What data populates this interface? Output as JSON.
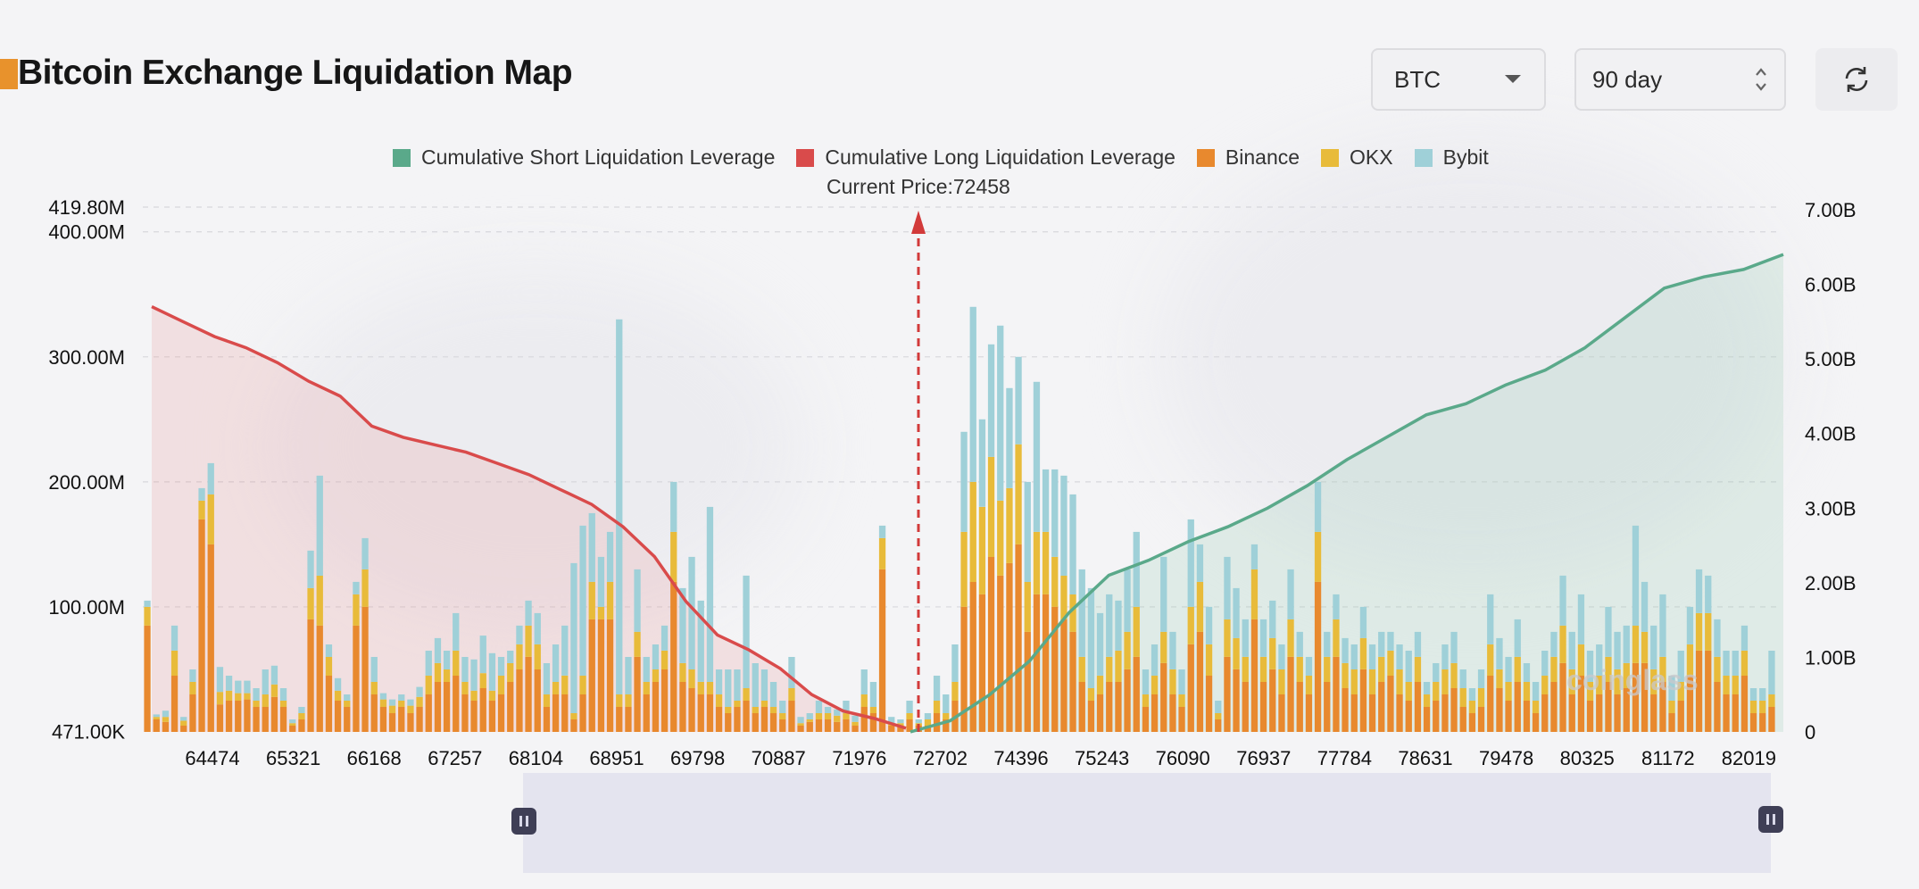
{
  "header": {
    "title": "Bitcoin Exchange Liquidation Map",
    "coin_select": "BTC",
    "range_select": "90 day",
    "icons": {
      "coin_caret": "chevron-down-icon",
      "range_caret": "up-down-icon",
      "refresh": "refresh-icon"
    }
  },
  "legend": {
    "items": [
      {
        "label": "Cumulative Short Liquidation Leverage",
        "color": "#5aa98a"
      },
      {
        "label": "Cumulative Long Liquidation Leverage",
        "color": "#d94b4b"
      },
      {
        "label": "Binance",
        "color": "#e8892e"
      },
      {
        "label": "OKX",
        "color": "#e8bb3a"
      },
      {
        "label": "Bybit",
        "color": "#9fd0d8"
      }
    ]
  },
  "current_price_label": "Current Price:72458",
  "watermark": "coinglass",
  "chart_data": {
    "type": "bar",
    "current_price": 72458,
    "x_tick_labels": [
      "64474",
      "65321",
      "66168",
      "67257",
      "68104",
      "68951",
      "69798",
      "70887",
      "71976",
      "72702",
      "74396",
      "75243",
      "76090",
      "76937",
      "77784",
      "78631",
      "79478",
      "80325",
      "81172",
      "82019"
    ],
    "y_left": {
      "tick_labels": [
        "471.00K",
        "100.00M",
        "200.00M",
        "300.00M",
        "400.00M",
        "419.80M"
      ],
      "ticks": [
        0.471,
        100,
        200,
        300,
        400,
        419.8
      ],
      "range": [
        0.471,
        419.8
      ],
      "unit": "M"
    },
    "y_right": {
      "tick_labels": [
        "0",
        "1.00B",
        "2.00B",
        "3.00B",
        "4.00B",
        "5.00B",
        "6.00B",
        "7.00B"
      ],
      "ticks": [
        0,
        1,
        2,
        3,
        4,
        5,
        6,
        7
      ],
      "range": [
        0,
        7
      ],
      "unit": "B"
    },
    "bars_binance_m": [
      85,
      10,
      8,
      45,
      5,
      30,
      170,
      150,
      22,
      25,
      25,
      26,
      20,
      20,
      28,
      20,
      5,
      10,
      90,
      85,
      45,
      25,
      20,
      85,
      100,
      30,
      20,
      15,
      20,
      15,
      20,
      30,
      40,
      40,
      45,
      30,
      25,
      35,
      25,
      30,
      40,
      50,
      60,
      50,
      20,
      30,
      30,
      10,
      30,
      90,
      90,
      90,
      20,
      20,
      60,
      30,
      40,
      50,
      120,
      40,
      35,
      30,
      30,
      20,
      15,
      20,
      25,
      15,
      20,
      15,
      10,
      25,
      5,
      8,
      10,
      10,
      8,
      10,
      5,
      20,
      15,
      130,
      5,
      5,
      10,
      5,
      5,
      15,
      10,
      25,
      100,
      120,
      110,
      140,
      125,
      135,
      150,
      80,
      110,
      110,
      100,
      90,
      80,
      40,
      25,
      30,
      40,
      40,
      50,
      60,
      20,
      30,
      55,
      30,
      20,
      70,
      80,
      45,
      10,
      60,
      50,
      40,
      90,
      40,
      50,
      30,
      60,
      40,
      30,
      120,
      40,
      60,
      35,
      30,
      50,
      30,
      40,
      45,
      30,
      25,
      40,
      20,
      25,
      30,
      35,
      20,
      15,
      20,
      45,
      35,
      25,
      40,
      25,
      15,
      30,
      40,
      55,
      30,
      45,
      25,
      30,
      40,
      30,
      35,
      55,
      55,
      30,
      40,
      15,
      25,
      45,
      65,
      65,
      40,
      30,
      30,
      45,
      15,
      15,
      20
    ],
    "bars_okx_m": [
      15,
      2,
      4,
      20,
      4,
      10,
      15,
      40,
      10,
      8,
      6,
      5,
      5,
      10,
      10,
      5,
      2,
      5,
      25,
      40,
      15,
      8,
      5,
      25,
      30,
      10,
      6,
      6,
      5,
      6,
      8,
      15,
      15,
      10,
      20,
      10,
      8,
      12,
      8,
      15,
      15,
      20,
      25,
      20,
      10,
      10,
      15,
      5,
      15,
      30,
      10,
      30,
      10,
      10,
      20,
      10,
      10,
      15,
      40,
      15,
      15,
      10,
      10,
      10,
      5,
      5,
      10,
      5,
      5,
      5,
      5,
      10,
      2,
      2,
      5,
      5,
      5,
      5,
      3,
      10,
      5,
      25,
      2,
      2,
      5,
      2,
      5,
      10,
      5,
      15,
      60,
      80,
      70,
      80,
      60,
      60,
      80,
      40,
      50,
      50,
      40,
      35,
      30,
      20,
      10,
      15,
      20,
      25,
      30,
      40,
      10,
      15,
      25,
      20,
      10,
      30,
      40,
      25,
      5,
      30,
      25,
      20,
      40,
      20,
      25,
      20,
      30,
      20,
      15,
      40,
      20,
      30,
      20,
      20,
      25,
      20,
      20,
      20,
      20,
      15,
      20,
      10,
      15,
      20,
      20,
      15,
      10,
      15,
      25,
      15,
      15,
      20,
      15,
      10,
      15,
      20,
      30,
      20,
      25,
      15,
      15,
      20,
      20,
      20,
      30,
      25,
      20,
      20,
      10,
      15,
      25,
      30,
      30,
      20,
      15,
      15,
      20,
      10,
      10,
      10
    ],
    "bars_bybit_m": [
      5,
      2,
      5,
      20,
      3,
      10,
      10,
      25,
      20,
      12,
      10,
      10,
      10,
      20,
      15,
      10,
      3,
      5,
      30,
      80,
      10,
      10,
      5,
      10,
      25,
      20,
      5,
      5,
      5,
      5,
      8,
      20,
      20,
      15,
      30,
      20,
      25,
      30,
      30,
      15,
      10,
      15,
      20,
      25,
      25,
      30,
      40,
      120,
      120,
      55,
      40,
      40,
      300,
      30,
      50,
      20,
      20,
      20,
      40,
      60,
      90,
      65,
      140,
      20,
      30,
      25,
      90,
      35,
      25,
      20,
      10,
      25,
      5,
      5,
      10,
      5,
      5,
      10,
      5,
      20,
      20,
      10,
      5,
      3,
      10,
      3,
      5,
      20,
      15,
      30,
      80,
      140,
      70,
      90,
      140,
      80,
      70,
      80,
      120,
      50,
      70,
      80,
      80,
      70,
      80,
      50,
      50,
      40,
      50,
      60,
      20,
      25,
      60,
      30,
      20,
      70,
      30,
      30,
      10,
      50,
      40,
      30,
      20,
      30,
      30,
      20,
      40,
      20,
      15,
      40,
      20,
      20,
      20,
      20,
      25,
      20,
      20,
      15,
      20,
      25,
      20,
      10,
      15,
      20,
      25,
      15,
      10,
      15,
      40,
      25,
      20,
      30,
      15,
      15,
      20,
      20,
      40,
      30,
      40,
      25,
      25,
      40,
      30,
      30,
      80,
      40,
      35,
      50,
      20,
      25,
      30,
      35,
      30,
      30,
      20,
      20,
      20,
      10,
      10,
      35
    ],
    "cumulative_long_b": [
      5.7,
      5.5,
      5.3,
      5.15,
      4.95,
      4.7,
      4.5,
      4.1,
      3.95,
      3.85,
      3.75,
      3.6,
      3.45,
      3.25,
      3.05,
      2.75,
      2.35,
      1.75,
      1.3,
      1.1,
      0.85,
      0.5,
      0.28,
      0.18,
      0.05
    ],
    "cumulative_short_b": [
      0,
      0.15,
      0.5,
      0.95,
      1.6,
      2.1,
      2.3,
      2.55,
      2.75,
      3.0,
      3.3,
      3.65,
      3.95,
      4.25,
      4.4,
      4.65,
      4.85,
      5.15,
      5.55,
      5.95,
      6.1,
      6.2,
      6.4
    ]
  }
}
